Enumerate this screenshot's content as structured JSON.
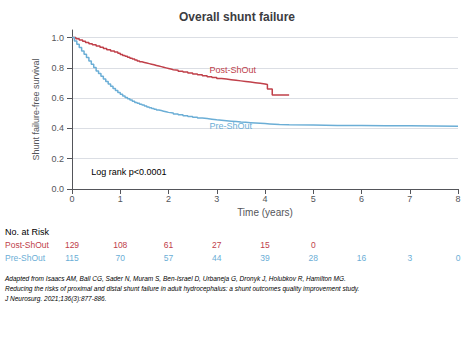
{
  "chart_data": {
    "type": "line",
    "line_style": "step",
    "title": "Overall shunt failure",
    "xlabel": "Time (years)",
    "ylabel": "Shunt failure-free survival",
    "xlim": [
      0,
      8
    ],
    "ylim": [
      0.0,
      1.05
    ],
    "xticks": [
      0,
      1,
      2,
      3,
      4,
      5,
      6,
      7,
      8
    ],
    "yticks": [
      {
        "value": 0.0,
        "label": "0.0"
      },
      0.2,
      0.4,
      0.6,
      0.8,
      {
        "value": 1.0,
        "label": "1.0"
      }
    ],
    "grid": true,
    "annotations": [
      "Log rank p<0.0001"
    ],
    "risk_table_label": "No. at Risk",
    "citation": [
      "Adapted from Isaacs AM, Ball CG, Sader N, Muram S, Ben-Israel D, Urbaneja G, Dronyk J, Holubkov R, Hamilton MG.",
      "Reducing the risks of proximal and distal shunt failure in adult hydrocephalus: a shunt outcomes quality improvement study.",
      "J Neurosurg. 2021;136(3):877-886."
    ],
    "series": [
      {
        "name": "Post-ShOut",
        "color": "#c0404a",
        "x": [
          0,
          0.08,
          0.15,
          0.22,
          0.28,
          0.35,
          0.42,
          0.5,
          0.58,
          0.65,
          0.72,
          0.8,
          0.88,
          0.95,
          1.0,
          1.05,
          1.1,
          1.15,
          1.2,
          1.25,
          1.3,
          1.35,
          1.4,
          1.45,
          1.5,
          1.55,
          1.6,
          1.65,
          1.7,
          1.75,
          1.8,
          1.85,
          1.9,
          1.95,
          2.0,
          2.05,
          2.1,
          2.2,
          2.3,
          2.4,
          2.5,
          2.6,
          2.7,
          2.8,
          2.9,
          3.0,
          3.1,
          3.2,
          3.3,
          3.4,
          3.5,
          3.6,
          3.7,
          3.8,
          3.9,
          4.0,
          4.05,
          4.15,
          4.5
        ],
        "values": [
          1.0,
          0.992,
          0.984,
          0.976,
          0.968,
          0.96,
          0.952,
          0.944,
          0.936,
          0.928,
          0.92,
          0.912,
          0.904,
          0.896,
          0.888,
          0.882,
          0.876,
          0.87,
          0.864,
          0.858,
          0.852,
          0.846,
          0.84,
          0.836,
          0.832,
          0.828,
          0.824,
          0.82,
          0.816,
          0.812,
          0.808,
          0.804,
          0.8,
          0.796,
          0.792,
          0.788,
          0.784,
          0.778,
          0.772,
          0.766,
          0.76,
          0.754,
          0.748,
          0.742,
          0.736,
          0.73,
          0.726,
          0.722,
          0.718,
          0.714,
          0.71,
          0.706,
          0.702,
          0.698,
          0.694,
          0.69,
          0.66,
          0.62,
          0.62
        ],
        "risk_times": [
          0,
          1,
          2,
          3,
          4,
          5
        ],
        "risk": [
          129,
          108,
          61,
          27,
          15,
          0
        ]
      },
      {
        "name": "Pre-ShOut",
        "color": "#6baed6",
        "x": [
          0,
          0.05,
          0.1,
          0.15,
          0.2,
          0.25,
          0.3,
          0.35,
          0.4,
          0.45,
          0.5,
          0.55,
          0.6,
          0.65,
          0.7,
          0.75,
          0.8,
          0.85,
          0.9,
          0.95,
          1.0,
          1.05,
          1.1,
          1.15,
          1.2,
          1.25,
          1.3,
          1.35,
          1.4,
          1.45,
          1.5,
          1.55,
          1.6,
          1.65,
          1.7,
          1.75,
          1.8,
          1.85,
          1.9,
          1.95,
          2.0,
          2.1,
          2.2,
          2.3,
          2.4,
          2.5,
          2.6,
          2.7,
          2.8,
          2.9,
          3.0,
          3.1,
          3.2,
          3.3,
          3.4,
          3.5,
          3.6,
          3.7,
          3.8,
          3.9,
          4.0,
          4.1,
          4.2,
          4.3,
          4.5,
          5.0,
          5.5,
          6.0,
          6.5,
          7.0,
          7.5,
          8.0
        ],
        "values": [
          1.0,
          0.978,
          0.956,
          0.934,
          0.912,
          0.89,
          0.868,
          0.846,
          0.824,
          0.802,
          0.78,
          0.762,
          0.744,
          0.726,
          0.71,
          0.694,
          0.678,
          0.664,
          0.65,
          0.638,
          0.626,
          0.614,
          0.604,
          0.596,
          0.588,
          0.58,
          0.572,
          0.566,
          0.56,
          0.554,
          0.548,
          0.542,
          0.537,
          0.532,
          0.527,
          0.522,
          0.518,
          0.514,
          0.51,
          0.506,
          0.502,
          0.496,
          0.49,
          0.484,
          0.479,
          0.474,
          0.469,
          0.465,
          0.461,
          0.457,
          0.454,
          0.451,
          0.448,
          0.445,
          0.442,
          0.44,
          0.438,
          0.436,
          0.434,
          0.432,
          0.43,
          0.428,
          0.426,
          0.424,
          0.422,
          0.42,
          0.419,
          0.418,
          0.417,
          0.416,
          0.415,
          0.414
        ],
        "risk_times": [
          0,
          1,
          2,
          3,
          4,
          5,
          6,
          7,
          8
        ],
        "risk": [
          115,
          70,
          57,
          44,
          39,
          28,
          16,
          3,
          0
        ]
      }
    ]
  }
}
